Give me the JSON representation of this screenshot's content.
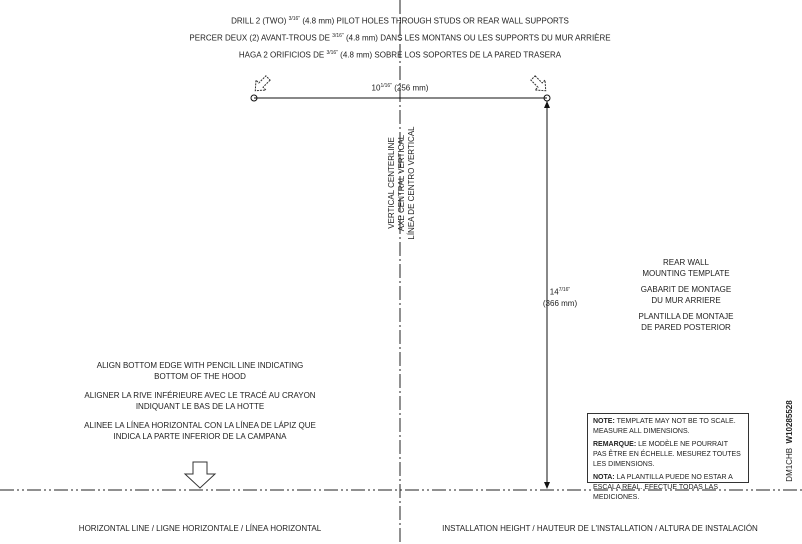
{
  "header_lines": [
    {
      "pre": "DRILL 2 (TWO) ",
      "frac": "3/16\"",
      "post": " (4.8 mm) PILOT HOLES THROUGH STUDS OR REAR WALL SUPPORTS"
    },
    {
      "pre": "PERCER DEUX (2) AVANT-TROUS DE ",
      "frac": "3/16\"",
      "post": " (4.8 mm)  DANS LES MONTANS OU LES SUPPORTS DU MUR ARRIÈRE"
    },
    {
      "pre": "HAGA 2 ORIFICIOS DE ",
      "frac": "3/16\"",
      "post": " (4.8 mm) SOBRE LOS SOPORTES DE LA PARED TRASERA"
    }
  ],
  "horizontal_dimension": {
    "whole": "10",
    "frac": "1/16\"",
    "metric": "(256 mm)"
  },
  "vertical_dimension": {
    "whole": "14",
    "frac": "7/16\"",
    "metric": "(366 mm)"
  },
  "centerline_labels": [
    "VERTICAL CENTERLINE",
    "AXE CENTRAL VERTICAL",
    "LÍNEA DE CENTRO VERTICAL"
  ],
  "title_block": [
    [
      "REAR WALL",
      "MOUNTING TEMPLATE"
    ],
    [
      "GABARIT DE MONTAGE",
      "DU MUR ARRIERE"
    ],
    [
      "PLANTILLA DE MONTAJE",
      "DE PARED POSTERIOR"
    ]
  ],
  "align_instructions": [
    [
      "ALIGN BOTTOM EDGE WITH PENCIL LINE INDICATING",
      "BOTTOM OF THE HOOD"
    ],
    [
      "ALIGNER LA RIVE INFÉRIEURE AVEC LE TRACÉ AU CRAYON",
      "INDIQUANT LE BAS DE LA HOTTE"
    ],
    [
      "ALINEE LA LÍNEA HORIZONTAL CON LA LÍNEA DE LÁPIZ QUE",
      "INDICA LA PARTE INFERIOR DE LA CAMPANA"
    ]
  ],
  "note": [
    {
      "label": "NOTE:",
      "text": " TEMPLATE MAY NOT BE TO SCALE. MEASURE ALL DIMENSIONS."
    },
    {
      "label": "REMARQUE:",
      "text": " LE MODÈLE NE POURRAIT PAS ÊTRE EN ÉCHELLE. MESUREZ TOUTES LES DIMENSIONS."
    },
    {
      "label": "NOTA:",
      "text": " LA PLANTILLA PUEDE NO ESTAR A ESCALA REAL. EFECTUE TODAS LAS MEDICIONES."
    }
  ],
  "part_code": {
    "prefix": "DM1CHB",
    "number": "W10285528"
  },
  "footer": {
    "left": "HORIZONTAL LINE / LIGNE HORIZONTALE / LÍNEA HORIZONTAL",
    "right": "INSTALLATION HEIGHT / HAUTEUR DE L'INSTALLATION /  ALTURA DE INSTALACIÓN"
  }
}
